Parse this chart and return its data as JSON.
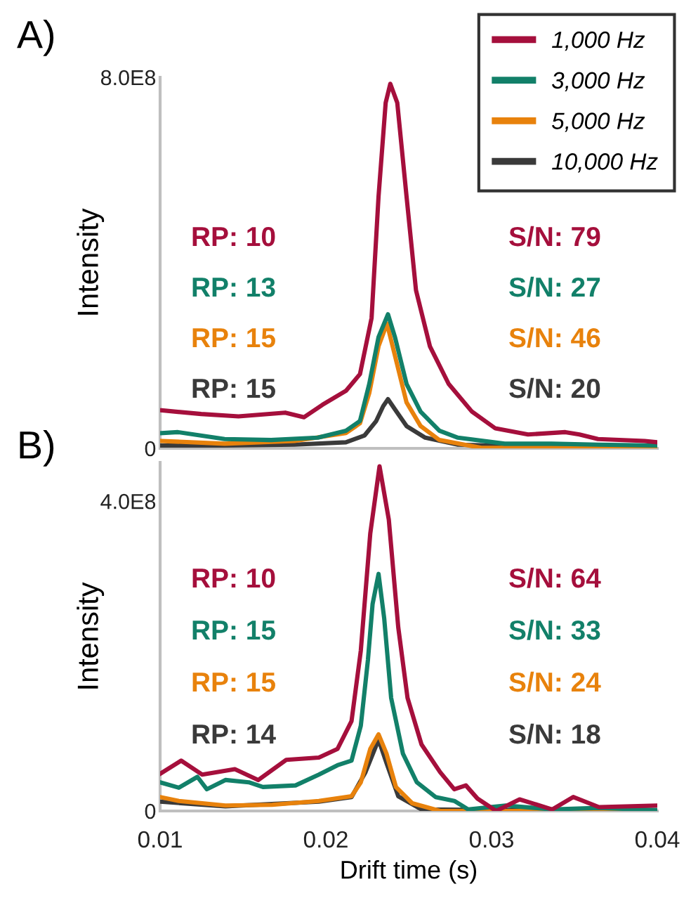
{
  "chart_data": [
    {
      "type": "line",
      "title": "A)",
      "ylabel": "Intensity",
      "xlim": [
        0.01,
        0.04
      ],
      "ylim": [
        0,
        800000000
      ],
      "xticks": [
        0.01,
        0.02,
        0.03,
        0.04
      ],
      "yticks": [
        0,
        {
          "value": 800000000,
          "label": "8.0E8"
        }
      ],
      "tick_labels": "y",
      "legend": "top right",
      "grid": false,
      "annotations": [
        "RP: 10",
        "RP: 13",
        "RP: 15",
        "RP: 15",
        "S/N: 79",
        "S/N: 27",
        "S/N: 46",
        "S/N: 20"
      ],
      "series": [
        {
          "name": "1,000 Hz",
          "color": "#a50f3c",
          "x": [
            0.01008,
            0.01248,
            0.01473,
            0.01755,
            0.01868,
            0.0198,
            0.02121,
            0.02206,
            0.02276,
            0.02318,
            0.02361,
            0.02389,
            0.02431,
            0.02487,
            0.02544,
            0.02628,
            0.02741,
            0.02882,
            0.03023,
            0.0322,
            0.03445,
            0.0353,
            0.03642,
            0.03924,
            0.04
          ],
          "values": [
            82000000,
            74000000,
            69000000,
            77000000,
            67000000,
            94000000,
            124000000,
            160000000,
            281000000,
            543000000,
            745000000,
            786000000,
            745000000,
            543000000,
            341000000,
            220000000,
            139000000,
            79000000,
            43000000,
            30000000,
            35000000,
            30000000,
            20000000,
            16000000,
            13000000
          ]
        },
        {
          "name": "3,000 Hz",
          "color": "#128069",
          "x": [
            0.01008,
            0.01107,
            0.01389,
            0.0167,
            0.01952,
            0.02121,
            0.02206,
            0.02262,
            0.02318,
            0.02375,
            0.02417,
            0.02487,
            0.02572,
            0.02685,
            0.02797,
            0.03079,
            0.03361,
            0.03642,
            0.04
          ],
          "values": [
            33000000,
            35000000,
            20000000,
            18000000,
            23000000,
            38000000,
            59000000,
            139000000,
            240000000,
            289000000,
            240000000,
            139000000,
            79000000,
            38000000,
            23000000,
            10000000,
            10000000,
            8000000,
            6000000
          ]
        },
        {
          "name": "5,000 Hz",
          "color": "#e8820c",
          "x": [
            0.01008,
            0.01389,
            0.01811,
            0.02121,
            0.02206,
            0.02262,
            0.02318,
            0.02369,
            0.02417,
            0.02487,
            0.02572,
            0.02685,
            0.02938,
            0.03361,
            0.04
          ],
          "values": [
            16000000,
            10000000,
            16000000,
            33000000,
            54000000,
            119000000,
            220000000,
            269000000,
            200000000,
            99000000,
            48000000,
            18000000,
            1000000,
            1000000,
            1000000
          ]
        },
        {
          "name": "10,000 Hz",
          "color": "#3a3a3a",
          "x": [
            0.01008,
            0.01389,
            0.01811,
            0.02121,
            0.02234,
            0.02304,
            0.02346,
            0.02375,
            0.02417,
            0.02487,
            0.026,
            0.02797,
            0.03361,
            0.04
          ],
          "values": [
            6000000,
            6000000,
            8000000,
            13000000,
            28000000,
            59000000,
            91000000,
            106000000,
            84000000,
            48000000,
            23000000,
            8000000,
            3000000,
            3000000
          ]
        }
      ]
    },
    {
      "type": "line",
      "title": "B)",
      "xlabel": "Drift time (s)",
      "ylabel": "Intensity",
      "xlim": [
        0.01,
        0.04
      ],
      "ylim": [
        0,
        450000000
      ],
      "xticks": [
        0.01,
        0.02,
        0.03,
        0.04
      ],
      "yticks": [
        0,
        {
          "value": 400000000,
          "label": "4.0E8"
        }
      ],
      "grid": false,
      "annotations": [
        "RP: 10",
        "RP: 15",
        "RP: 15",
        "RP: 14",
        "S/N: 64",
        "S/N: 33",
        "S/N: 24",
        "S/N: 18"
      ],
      "series": [
        {
          "color": "#a50f3c",
          "x": [
            0.01,
            0.01127,
            0.01254,
            0.01451,
            0.01592,
            0.01761,
            0.01958,
            0.0207,
            0.02155,
            0.02211,
            0.02268,
            0.02324,
            0.0238,
            0.02437,
            0.02493,
            0.02577,
            0.0269,
            0.02775,
            0.02845,
            0.02915,
            0.03028,
            0.03169,
            0.03366,
            0.03493,
            0.03648,
            0.04
          ],
          "values": [
            48000000,
            65000000,
            47000000,
            54000000,
            40000000,
            66000000,
            69000000,
            80000000,
            116000000,
            207000000,
            358000000,
            445000000,
            376000000,
            237000000,
            146000000,
            86000000,
            50000000,
            28000000,
            33000000,
            16000000,
            0,
            15000000,
            2000000,
            18000000,
            5000000,
            7000000
          ]
        },
        {
          "color": "#128069",
          "x": [
            0.01,
            0.01113,
            0.01225,
            0.01282,
            0.01394,
            0.01535,
            0.0162,
            0.01817,
            0.01958,
            0.0207,
            0.02155,
            0.02211,
            0.02254,
            0.02282,
            0.02318,
            0.02352,
            0.02394,
            0.02465,
            0.02549,
            0.02662,
            0.02775,
            0.02859,
            0.03085,
            0.03366,
            0.03648,
            0.04
          ],
          "values": [
            37000000,
            30000000,
            44000000,
            28000000,
            40000000,
            37000000,
            31000000,
            33000000,
            47000000,
            59000000,
            65000000,
            110000000,
            195000000,
            267000000,
            306000000,
            249000000,
            146000000,
            74000000,
            37000000,
            18000000,
            13000000,
            2000000,
            7000000,
            2000000,
            4000000,
            1000000
          ]
        },
        {
          "color": "#e8820c",
          "x": [
            0.01,
            0.01113,
            0.01394,
            0.01676,
            0.01958,
            0.02155,
            0.02211,
            0.02268,
            0.02318,
            0.02366,
            0.02423,
            0.02521,
            0.0269,
            0.03085,
            0.04
          ],
          "values": [
            18000000,
            13000000,
            7000000,
            8000000,
            13000000,
            19000000,
            37000000,
            80000000,
            99000000,
            74000000,
            31000000,
            10000000,
            0,
            0,
            0
          ]
        },
        {
          "color": "#3a3a3a",
          "x": [
            0.01,
            0.01394,
            0.01958,
            0.02155,
            0.02239,
            0.02318,
            0.02366,
            0.02437,
            0.02577,
            0.03085,
            0.04
          ],
          "values": [
            12000000,
            6000000,
            12000000,
            18000000,
            50000000,
            92000000,
            62000000,
            19000000,
            2000000,
            1000000,
            1000000
          ]
        }
      ]
    }
  ]
}
